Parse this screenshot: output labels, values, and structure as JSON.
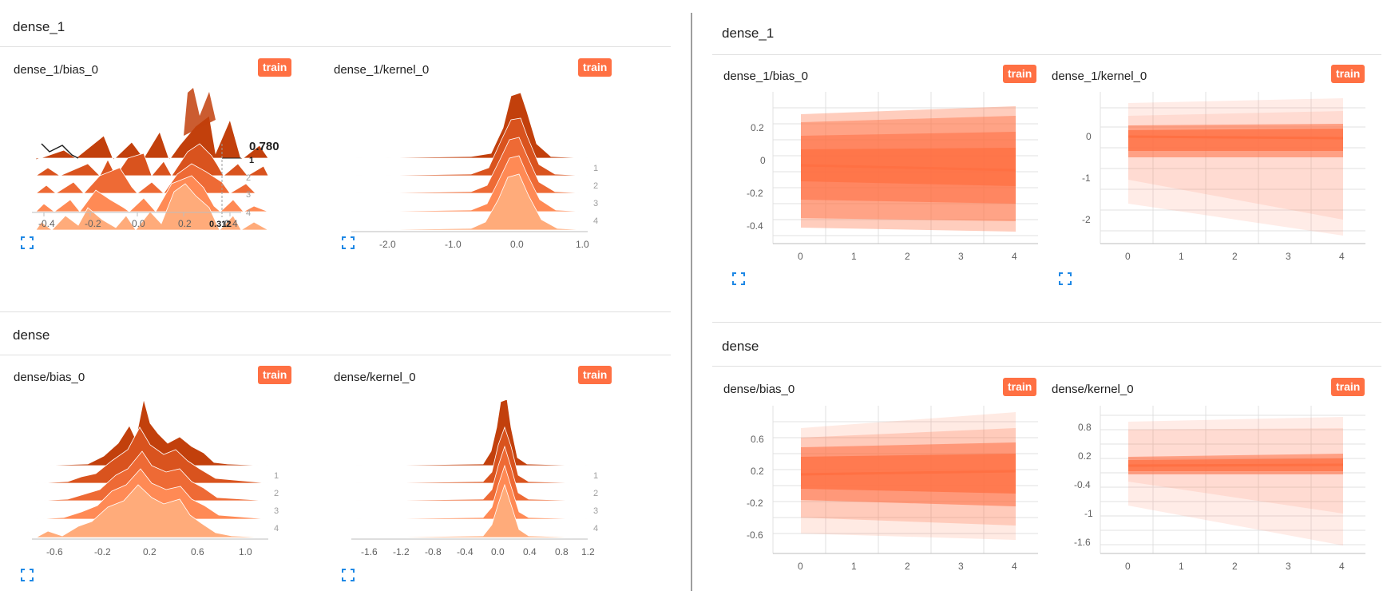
{
  "colors": {
    "accent": "#ff7043",
    "dist_band": "#ff7043",
    "hist_dark": "#c2400c",
    "hist_light": "#ffab7a"
  },
  "left": {
    "groups": [
      {
        "title": "dense_1",
        "cards": [
          {
            "title": "dense_1/bias_0",
            "run": "train",
            "x_ticks": [
              "-0.4",
              "-0.2",
              "0.0",
              "0.2",
              "0.4"
            ],
            "step_labels": [
              "1",
              "2",
              "3",
              "4"
            ],
            "tooltip": {
              "value": "0.780",
              "step": "1",
              "x": "0.312"
            }
          },
          {
            "title": "dense_1/kernel_0",
            "run": "train",
            "x_ticks": [
              "-2.0",
              "-1.0",
              "0.0",
              "1.0"
            ],
            "step_labels": [
              "1",
              "2",
              "3",
              "4"
            ]
          }
        ]
      },
      {
        "title": "dense",
        "cards": [
          {
            "title": "dense/bias_0",
            "run": "train",
            "x_ticks": [
              "-0.6",
              "-0.2",
              "0.2",
              "0.6",
              "1.0"
            ],
            "step_labels": [
              "1",
              "2",
              "3",
              "4"
            ]
          },
          {
            "title": "dense/kernel_0",
            "run": "train",
            "x_ticks": [
              "-1.6",
              "-1.2",
              "-0.8",
              "-0.4",
              "0.0",
              "0.4",
              "0.8",
              "1.2"
            ],
            "step_labels": [
              "1",
              "2",
              "3",
              "4"
            ]
          }
        ]
      }
    ]
  },
  "right": {
    "groups": [
      {
        "title": "dense_1",
        "cards": [
          {
            "title": "dense_1/bias_0",
            "run": "train",
            "x_ticks": [
              "0",
              "1",
              "2",
              "3",
              "4"
            ],
            "y_ticks": [
              "0.2",
              "0",
              "-0.2",
              "-0.4"
            ]
          },
          {
            "title": "dense_1/kernel_0",
            "run": "train",
            "x_ticks": [
              "0",
              "1",
              "2",
              "3",
              "4"
            ],
            "y_ticks": [
              "0",
              "-1",
              "-2"
            ]
          }
        ]
      },
      {
        "title": "dense",
        "cards": [
          {
            "title": "dense/bias_0",
            "run": "train",
            "x_ticks": [
              "0",
              "1",
              "2",
              "3",
              "4"
            ],
            "y_ticks": [
              "0.6",
              "0.2",
              "-0.2",
              "-0.6"
            ]
          },
          {
            "title": "dense/kernel_0",
            "run": "train",
            "x_ticks": [
              "0",
              "1",
              "2",
              "3",
              "4"
            ],
            "y_ticks": [
              "0.8",
              "0.2",
              "-0.4",
              "-1",
              "-1.6"
            ]
          }
        ]
      }
    ]
  }
}
